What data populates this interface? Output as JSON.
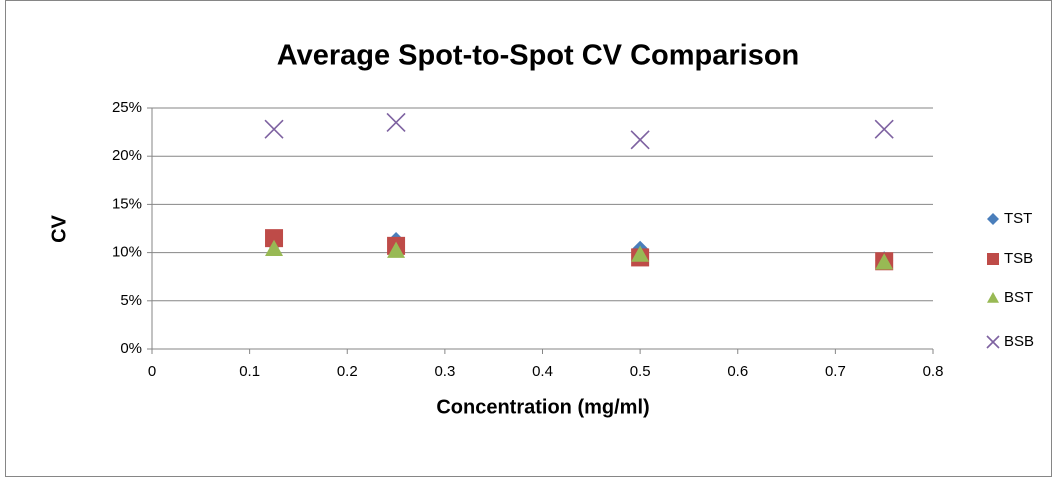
{
  "chart_data": {
    "type": "scatter",
    "title": "Average Spot-to-Spot CV Comparison",
    "x_label": "Concentration (mg/ml)",
    "y_label": "CV",
    "x": [
      0.125,
      0.25,
      0.5,
      0.75
    ],
    "series": [
      {
        "name": "TST",
        "color": "#4a7ebb",
        "marker": "diamond",
        "values": [
          11.0,
          11.2,
          10.3,
          9.2
        ]
      },
      {
        "name": "TSB",
        "color": "#be4b48",
        "marker": "square",
        "values": [
          11.5,
          10.7,
          9.5,
          9.1
        ]
      },
      {
        "name": "BST",
        "color": "#98b954",
        "marker": "triangle",
        "values": [
          10.4,
          10.2,
          9.8,
          9.0
        ]
      },
      {
        "name": "BSB",
        "color": "#7e62a1",
        "marker": "x",
        "values": [
          22.8,
          23.5,
          21.7,
          22.8
        ]
      }
    ],
    "xlim": [
      0,
      0.8
    ],
    "xticks": [
      0,
      0.1,
      0.2,
      0.3,
      0.4,
      0.5,
      0.6,
      0.7,
      0.8
    ],
    "ylim": [
      0,
      25
    ],
    "yticks": [
      {
        "value": 0,
        "label": "0%"
      },
      {
        "value": 5,
        "label": "5%"
      },
      {
        "value": 10,
        "label": "10%"
      },
      {
        "value": 15,
        "label": "15%"
      },
      {
        "value": 20,
        "label": "20%"
      },
      {
        "value": 25,
        "label": "25%"
      }
    ],
    "grid": true,
    "legend": "right"
  }
}
